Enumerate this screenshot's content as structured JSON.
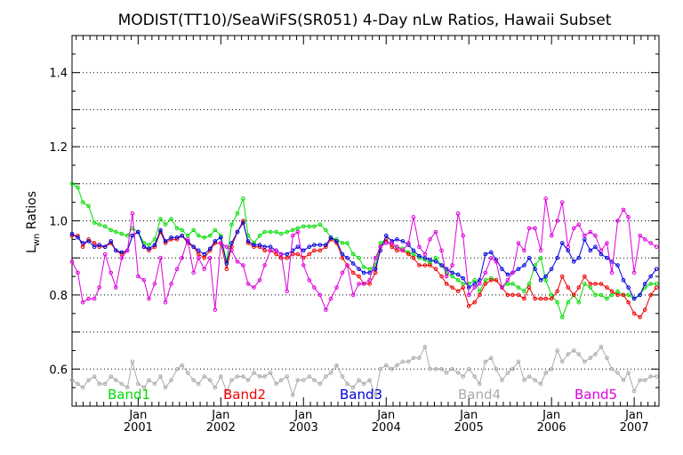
{
  "chart_data": {
    "type": "line",
    "title": "MODIST(TT10)/SeaWiFS(SR051) 4-Day nLw Ratios, Hawaii Subset",
    "ylabel_main": "L",
    "ylabel_sub": "wn",
    "ylabel_rest": " Ratios",
    "ylim": [
      0.5,
      1.5
    ],
    "xlim": [
      2000.2,
      2007.3
    ],
    "yticks": [
      0.6,
      0.8,
      1.0,
      1.2,
      1.4
    ],
    "ytick_labels": [
      "0.6",
      "0.8",
      "1.0",
      "1.2",
      "1.4"
    ],
    "grid": "horizontal dotted at every 0.1",
    "xticks_minor_label": "Jan",
    "xticks": [
      {
        "x": 2001.0,
        "year": "2001"
      },
      {
        "x": 2002.0,
        "year": "2002"
      },
      {
        "x": 2003.0,
        "year": "2003"
      },
      {
        "x": 2004.0,
        "year": "2004"
      },
      {
        "x": 2005.0,
        "year": "2005"
      },
      {
        "x": 2006.0,
        "year": "2006"
      },
      {
        "x": 2007.0,
        "year": "2007"
      }
    ],
    "x": [
      2000.2,
      2000.27,
      2000.33,
      2000.4,
      2000.47,
      2000.53,
      2000.6,
      2000.67,
      2000.73,
      2000.8,
      2000.87,
      2000.93,
      2001.0,
      2001.07,
      2001.13,
      2001.2,
      2001.27,
      2001.33,
      2001.4,
      2001.47,
      2001.53,
      2001.6,
      2001.67,
      2001.73,
      2001.8,
      2001.87,
      2001.93,
      2002.0,
      2002.07,
      2002.13,
      2002.2,
      2002.27,
      2002.33,
      2002.4,
      2002.47,
      2002.53,
      2002.6,
      2002.67,
      2002.73,
      2002.8,
      2002.87,
      2002.93,
      2003.0,
      2003.07,
      2003.13,
      2003.2,
      2003.27,
      2003.33,
      2003.4,
      2003.47,
      2003.53,
      2003.6,
      2003.67,
      2003.73,
      2003.8,
      2003.87,
      2003.93,
      2004.0,
      2004.07,
      2004.13,
      2004.2,
      2004.27,
      2004.33,
      2004.4,
      2004.47,
      2004.53,
      2004.6,
      2004.67,
      2004.73,
      2004.8,
      2004.87,
      2004.93,
      2005.0,
      2005.07,
      2005.13,
      2005.2,
      2005.27,
      2005.33,
      2005.4,
      2005.47,
      2005.53,
      2005.6,
      2005.67,
      2005.73,
      2005.8,
      2005.87,
      2005.93,
      2006.0,
      2006.07,
      2006.13,
      2006.2,
      2006.27,
      2006.33,
      2006.4,
      2006.47,
      2006.53,
      2006.6,
      2006.67,
      2006.73,
      2006.8,
      2006.87,
      2006.93,
      2007.0,
      2007.07,
      2007.13,
      2007.2,
      2007.27
    ],
    "series": [
      {
        "name": "Band1",
        "color": "#00dd00",
        "values": [
          1.1,
          1.09,
          1.05,
          1.04,
          0.995,
          0.99,
          0.985,
          0.975,
          0.97,
          0.965,
          0.96,
          0.98,
          0.97,
          0.94,
          0.935,
          0.95,
          1.005,
          0.99,
          1.005,
          0.98,
          0.975,
          0.96,
          0.975,
          0.96,
          0.955,
          0.96,
          0.975,
          0.96,
          0.89,
          0.99,
          1.02,
          1.06,
          0.96,
          0.94,
          0.96,
          0.97,
          0.97,
          0.97,
          0.965,
          0.97,
          0.975,
          0.98,
          0.985,
          0.985,
          0.985,
          0.99,
          0.975,
          0.955,
          0.95,
          0.94,
          0.94,
          0.91,
          0.9,
          0.875,
          0.87,
          0.88,
          0.94,
          0.95,
          0.93,
          0.93,
          0.925,
          0.915,
          0.91,
          0.9,
          0.895,
          0.885,
          0.9,
          0.88,
          0.86,
          0.85,
          0.84,
          0.83,
          0.83,
          0.84,
          0.81,
          0.84,
          0.845,
          0.84,
          0.82,
          0.83,
          0.83,
          0.82,
          0.81,
          0.83,
          0.88,
          0.9,
          0.84,
          0.8,
          0.78,
          0.74,
          0.78,
          0.8,
          0.78,
          0.83,
          0.82,
          0.8,
          0.8,
          0.79,
          0.8,
          0.81,
          0.8,
          0.8,
          0.79,
          0.8,
          0.82,
          0.83,
          0.83
        ]
      },
      {
        "name": "Band2",
        "color": "#ee0000",
        "values": [
          0.96,
          0.96,
          0.93,
          0.95,
          0.94,
          0.93,
          0.93,
          0.94,
          0.92,
          0.91,
          0.92,
          0.96,
          0.97,
          0.93,
          0.92,
          0.93,
          0.97,
          0.94,
          0.95,
          0.95,
          0.96,
          0.94,
          0.93,
          0.91,
          0.9,
          0.92,
          0.94,
          0.94,
          0.87,
          0.93,
          0.97,
          1.0,
          0.94,
          0.93,
          0.93,
          0.92,
          0.92,
          0.91,
          0.9,
          0.9,
          0.91,
          0.91,
          0.9,
          0.91,
          0.92,
          0.92,
          0.93,
          0.95,
          0.94,
          0.9,
          0.88,
          0.86,
          0.85,
          0.83,
          0.83,
          0.86,
          0.93,
          0.95,
          0.93,
          0.92,
          0.92,
          0.91,
          0.9,
          0.88,
          0.88,
          0.88,
          0.87,
          0.85,
          0.83,
          0.82,
          0.81,
          0.82,
          0.77,
          0.78,
          0.8,
          0.83,
          0.84,
          0.84,
          0.82,
          0.8,
          0.8,
          0.8,
          0.79,
          0.82,
          0.79,
          0.79,
          0.79,
          0.79,
          0.81,
          0.85,
          0.82,
          0.8,
          0.82,
          0.85,
          0.83,
          0.83,
          0.83,
          0.82,
          0.81,
          0.8,
          0.8,
          0.78,
          0.75,
          0.74,
          0.76,
          0.8,
          0.82
        ]
      },
      {
        "name": "Band3",
        "color": "#0000dd",
        "values": [
          0.965,
          0.955,
          0.94,
          0.945,
          0.93,
          0.935,
          0.93,
          0.945,
          0.92,
          0.915,
          0.92,
          0.96,
          0.97,
          0.93,
          0.925,
          0.935,
          0.975,
          0.945,
          0.955,
          0.955,
          0.96,
          0.945,
          0.93,
          0.92,
          0.91,
          0.925,
          0.945,
          0.955,
          0.885,
          0.94,
          0.97,
          0.995,
          0.945,
          0.935,
          0.935,
          0.93,
          0.93,
          0.92,
          0.91,
          0.91,
          0.92,
          0.93,
          0.92,
          0.93,
          0.935,
          0.935,
          0.935,
          0.955,
          0.945,
          0.91,
          0.9,
          0.885,
          0.87,
          0.86,
          0.86,
          0.87,
          0.92,
          0.96,
          0.945,
          0.95,
          0.945,
          0.935,
          0.92,
          0.905,
          0.9,
          0.895,
          0.89,
          0.88,
          0.87,
          0.86,
          0.855,
          0.845,
          0.82,
          0.83,
          0.84,
          0.91,
          0.915,
          0.895,
          0.87,
          0.855,
          0.86,
          0.87,
          0.88,
          0.9,
          0.87,
          0.84,
          0.85,
          0.87,
          0.9,
          0.94,
          0.92,
          0.89,
          0.9,
          0.95,
          0.92,
          0.93,
          0.91,
          0.9,
          0.89,
          0.88,
          0.84,
          0.82,
          0.79,
          0.8,
          0.83,
          0.85,
          0.87
        ]
      },
      {
        "name": "Band4",
        "color": "#aaaaaa",
        "values": [
          0.57,
          0.56,
          0.55,
          0.57,
          0.58,
          0.56,
          0.56,
          0.58,
          0.57,
          0.56,
          0.55,
          0.62,
          0.56,
          0.55,
          0.57,
          0.56,
          0.58,
          0.55,
          0.57,
          0.6,
          0.61,
          0.59,
          0.57,
          0.56,
          0.58,
          0.57,
          0.55,
          0.58,
          0.54,
          0.57,
          0.58,
          0.58,
          0.57,
          0.59,
          0.58,
          0.58,
          0.59,
          0.56,
          0.57,
          0.58,
          0.53,
          0.57,
          0.57,
          0.58,
          0.57,
          0.56,
          0.58,
          0.59,
          0.61,
          0.58,
          0.56,
          0.55,
          0.57,
          0.56,
          0.57,
          0.53,
          0.6,
          0.61,
          0.6,
          0.61,
          0.62,
          0.62,
          0.63,
          0.63,
          0.66,
          0.6,
          0.6,
          0.6,
          0.59,
          0.6,
          0.59,
          0.58,
          0.6,
          0.58,
          0.56,
          0.62,
          0.63,
          0.6,
          0.57,
          0.59,
          0.6,
          0.62,
          0.57,
          0.58,
          0.57,
          0.56,
          0.59,
          0.6,
          0.65,
          0.62,
          0.64,
          0.65,
          0.64,
          0.62,
          0.63,
          0.64,
          0.66,
          0.63,
          0.6,
          0.59,
          0.57,
          0.59,
          0.54,
          0.57,
          0.57,
          0.58,
          0.58
        ]
      },
      {
        "name": "Band5",
        "color": "#dd00dd",
        "values": [
          0.89,
          0.86,
          0.78,
          0.79,
          0.79,
          0.82,
          0.91,
          0.86,
          0.82,
          0.9,
          0.92,
          1.02,
          0.85,
          0.84,
          0.79,
          0.83,
          0.9,
          0.78,
          0.83,
          0.87,
          0.9,
          0.95,
          0.86,
          0.9,
          0.87,
          0.9,
          0.76,
          0.94,
          0.93,
          0.92,
          0.89,
          0.88,
          0.83,
          0.82,
          0.84,
          0.88,
          0.92,
          0.92,
          0.91,
          0.81,
          0.96,
          0.97,
          0.88,
          0.84,
          0.82,
          0.8,
          0.76,
          0.79,
          0.82,
          0.86,
          0.88,
          0.8,
          0.83,
          0.83,
          0.84,
          0.9,
          0.93,
          0.94,
          0.94,
          0.93,
          0.92,
          0.94,
          1.01,
          0.93,
          0.91,
          0.95,
          0.97,
          0.92,
          0.85,
          0.88,
          1.02,
          0.96,
          0.8,
          0.82,
          0.83,
          0.86,
          0.9,
          0.89,
          0.82,
          0.84,
          0.86,
          0.94,
          0.92,
          0.98,
          0.98,
          0.92,
          1.06,
          0.96,
          1.0,
          1.05,
          0.93,
          0.98,
          0.99,
          0.96,
          0.97,
          0.96,
          0.92,
          0.94,
          0.86,
          1.0,
          1.03,
          1.01,
          0.86,
          0.96,
          0.95,
          0.94,
          0.93
        ]
      }
    ]
  }
}
